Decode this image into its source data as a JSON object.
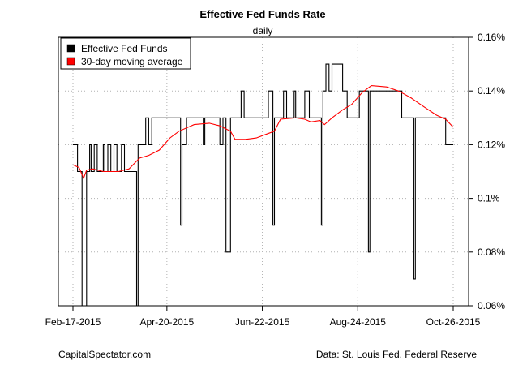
{
  "chart_data": {
    "type": "line",
    "title": "Effective Fed Funds Rate",
    "subtitle": "daily",
    "xlabel": "",
    "ylabel": "",
    "x_start": "2015-02-17",
    "x_end": "2015-10-26",
    "x_ticks": [
      {
        "date": "2015-02-17",
        "label": "Feb-17-2015"
      },
      {
        "date": "2015-04-20",
        "label": "Apr-20-2015"
      },
      {
        "date": "2015-06-22",
        "label": "Jun-22-2015"
      },
      {
        "date": "2015-08-24",
        "label": "Aug-24-2015"
      },
      {
        "date": "2015-10-26",
        "label": "Oct-26-2015"
      }
    ],
    "ylim": [
      0.06,
      0.16
    ],
    "y_axis_position": "right",
    "y_ticks": [
      {
        "value": 0.06,
        "label": "0.06%"
      },
      {
        "value": 0.08,
        "label": "0.08%"
      },
      {
        "value": 0.1,
        "label": "0.1%"
      },
      {
        "value": 0.12,
        "label": "0.12%"
      },
      {
        "value": 0.14,
        "label": "0.14%"
      },
      {
        "value": 0.16,
        "label": "0.16%"
      }
    ],
    "grid": true,
    "legend_position": "top-left",
    "series": [
      {
        "name": "Effective Fed Funds",
        "color": "#000000",
        "step": true,
        "points": [
          [
            "2015-02-17",
            0.12
          ],
          [
            "2015-02-20",
            0.11
          ],
          [
            "2015-02-22",
            0.11
          ],
          [
            "2015-02-23",
            0.05
          ],
          [
            "2015-02-25",
            0.05
          ],
          [
            "2015-02-26",
            0.11
          ],
          [
            "2015-02-28",
            0.12
          ],
          [
            "2015-03-01",
            0.11
          ],
          [
            "2015-03-03",
            0.12
          ],
          [
            "2015-03-05",
            0.11
          ],
          [
            "2015-03-09",
            0.12
          ],
          [
            "2015-03-10",
            0.11
          ],
          [
            "2015-03-12",
            0.12
          ],
          [
            "2015-03-14",
            0.11
          ],
          [
            "2015-03-16",
            0.12
          ],
          [
            "2015-03-18",
            0.11
          ],
          [
            "2015-03-21",
            0.12
          ],
          [
            "2015-03-23",
            0.11
          ],
          [
            "2015-03-31",
            0.05
          ],
          [
            "2015-04-01",
            0.12
          ],
          [
            "2015-04-05",
            0.12
          ],
          [
            "2015-04-06",
            0.13
          ],
          [
            "2015-04-08",
            0.12
          ],
          [
            "2015-04-10",
            0.13
          ],
          [
            "2015-04-29",
            0.09
          ],
          [
            "2015-04-30",
            0.12
          ],
          [
            "2015-05-03",
            0.13
          ],
          [
            "2015-05-14",
            0.12
          ],
          [
            "2015-05-15",
            0.13
          ],
          [
            "2015-05-25",
            0.12
          ],
          [
            "2015-05-27",
            0.13
          ],
          [
            "2015-05-29",
            0.08
          ],
          [
            "2015-06-01",
            0.13
          ],
          [
            "2015-06-08",
            0.14
          ],
          [
            "2015-06-10",
            0.13
          ],
          [
            "2015-06-26",
            0.14
          ],
          [
            "2015-06-29",
            0.09
          ],
          [
            "2015-06-30",
            0.13
          ],
          [
            "2015-07-01",
            0.13
          ],
          [
            "2015-07-06",
            0.14
          ],
          [
            "2015-07-08",
            0.13
          ],
          [
            "2015-07-13",
            0.14
          ],
          [
            "2015-07-14",
            0.13
          ],
          [
            "2015-07-20",
            0.14
          ],
          [
            "2015-07-23",
            0.13
          ],
          [
            "2015-07-31",
            0.09
          ],
          [
            "2015-08-01",
            0.14
          ],
          [
            "2015-08-03",
            0.15
          ],
          [
            "2015-08-05",
            0.14
          ],
          [
            "2015-08-07",
            0.15
          ],
          [
            "2015-08-14",
            0.14
          ],
          [
            "2015-08-17",
            0.13
          ],
          [
            "2015-08-25",
            0.14
          ],
          [
            "2015-08-31",
            0.08
          ],
          [
            "2015-09-01",
            0.14
          ],
          [
            "2015-09-21",
            0.14
          ],
          [
            "2015-09-22",
            0.13
          ],
          [
            "2015-09-29",
            0.13
          ],
          [
            "2015-09-30",
            0.07
          ],
          [
            "2015-10-01",
            0.13
          ],
          [
            "2015-10-21",
            0.12
          ],
          [
            "2015-10-26",
            0.12
          ]
        ]
      },
      {
        "name": "30-day moving average",
        "color": "#ff0000",
        "step": false,
        "points": [
          [
            "2015-02-17",
            0.1125
          ],
          [
            "2015-02-21",
            0.1115
          ],
          [
            "2015-02-24",
            0.1075
          ],
          [
            "2015-02-26",
            0.1105
          ],
          [
            "2015-03-02",
            0.111
          ],
          [
            "2015-03-09",
            0.11
          ],
          [
            "2015-03-19",
            0.11
          ],
          [
            "2015-03-26",
            0.111
          ],
          [
            "2015-04-02",
            0.115
          ],
          [
            "2015-04-08",
            0.116
          ],
          [
            "2015-04-15",
            0.118
          ],
          [
            "2015-04-22",
            0.1225
          ],
          [
            "2015-04-28",
            0.125
          ],
          [
            "2015-05-08",
            0.1275
          ],
          [
            "2015-05-18",
            0.128
          ],
          [
            "2015-05-25",
            0.127
          ],
          [
            "2015-06-01",
            0.125
          ],
          [
            "2015-06-04",
            0.122
          ],
          [
            "2015-06-11",
            0.122
          ],
          [
            "2015-06-18",
            0.1225
          ],
          [
            "2015-06-25",
            0.124
          ],
          [
            "2015-06-30",
            0.125
          ],
          [
            "2015-07-04",
            0.1295
          ],
          [
            "2015-07-14",
            0.13
          ],
          [
            "2015-07-20",
            0.1295
          ],
          [
            "2015-07-24",
            0.1285
          ],
          [
            "2015-07-30",
            0.129
          ],
          [
            "2015-08-02",
            0.1275
          ],
          [
            "2015-08-07",
            0.13
          ],
          [
            "2015-08-14",
            0.133
          ],
          [
            "2015-08-20",
            0.135
          ],
          [
            "2015-08-27",
            0.1395
          ],
          [
            "2015-09-02",
            0.142
          ],
          [
            "2015-09-12",
            0.1415
          ],
          [
            "2015-09-20",
            0.14
          ],
          [
            "2015-09-28",
            0.1375
          ],
          [
            "2015-10-07",
            0.134
          ],
          [
            "2015-10-15",
            0.131
          ],
          [
            "2015-10-21",
            0.1295
          ],
          [
            "2015-10-26",
            0.1265
          ]
        ]
      }
    ]
  },
  "footer": {
    "left": "CapitalSpectator.com",
    "right": "Data: St. Louis Fed, Federal Reserve"
  }
}
